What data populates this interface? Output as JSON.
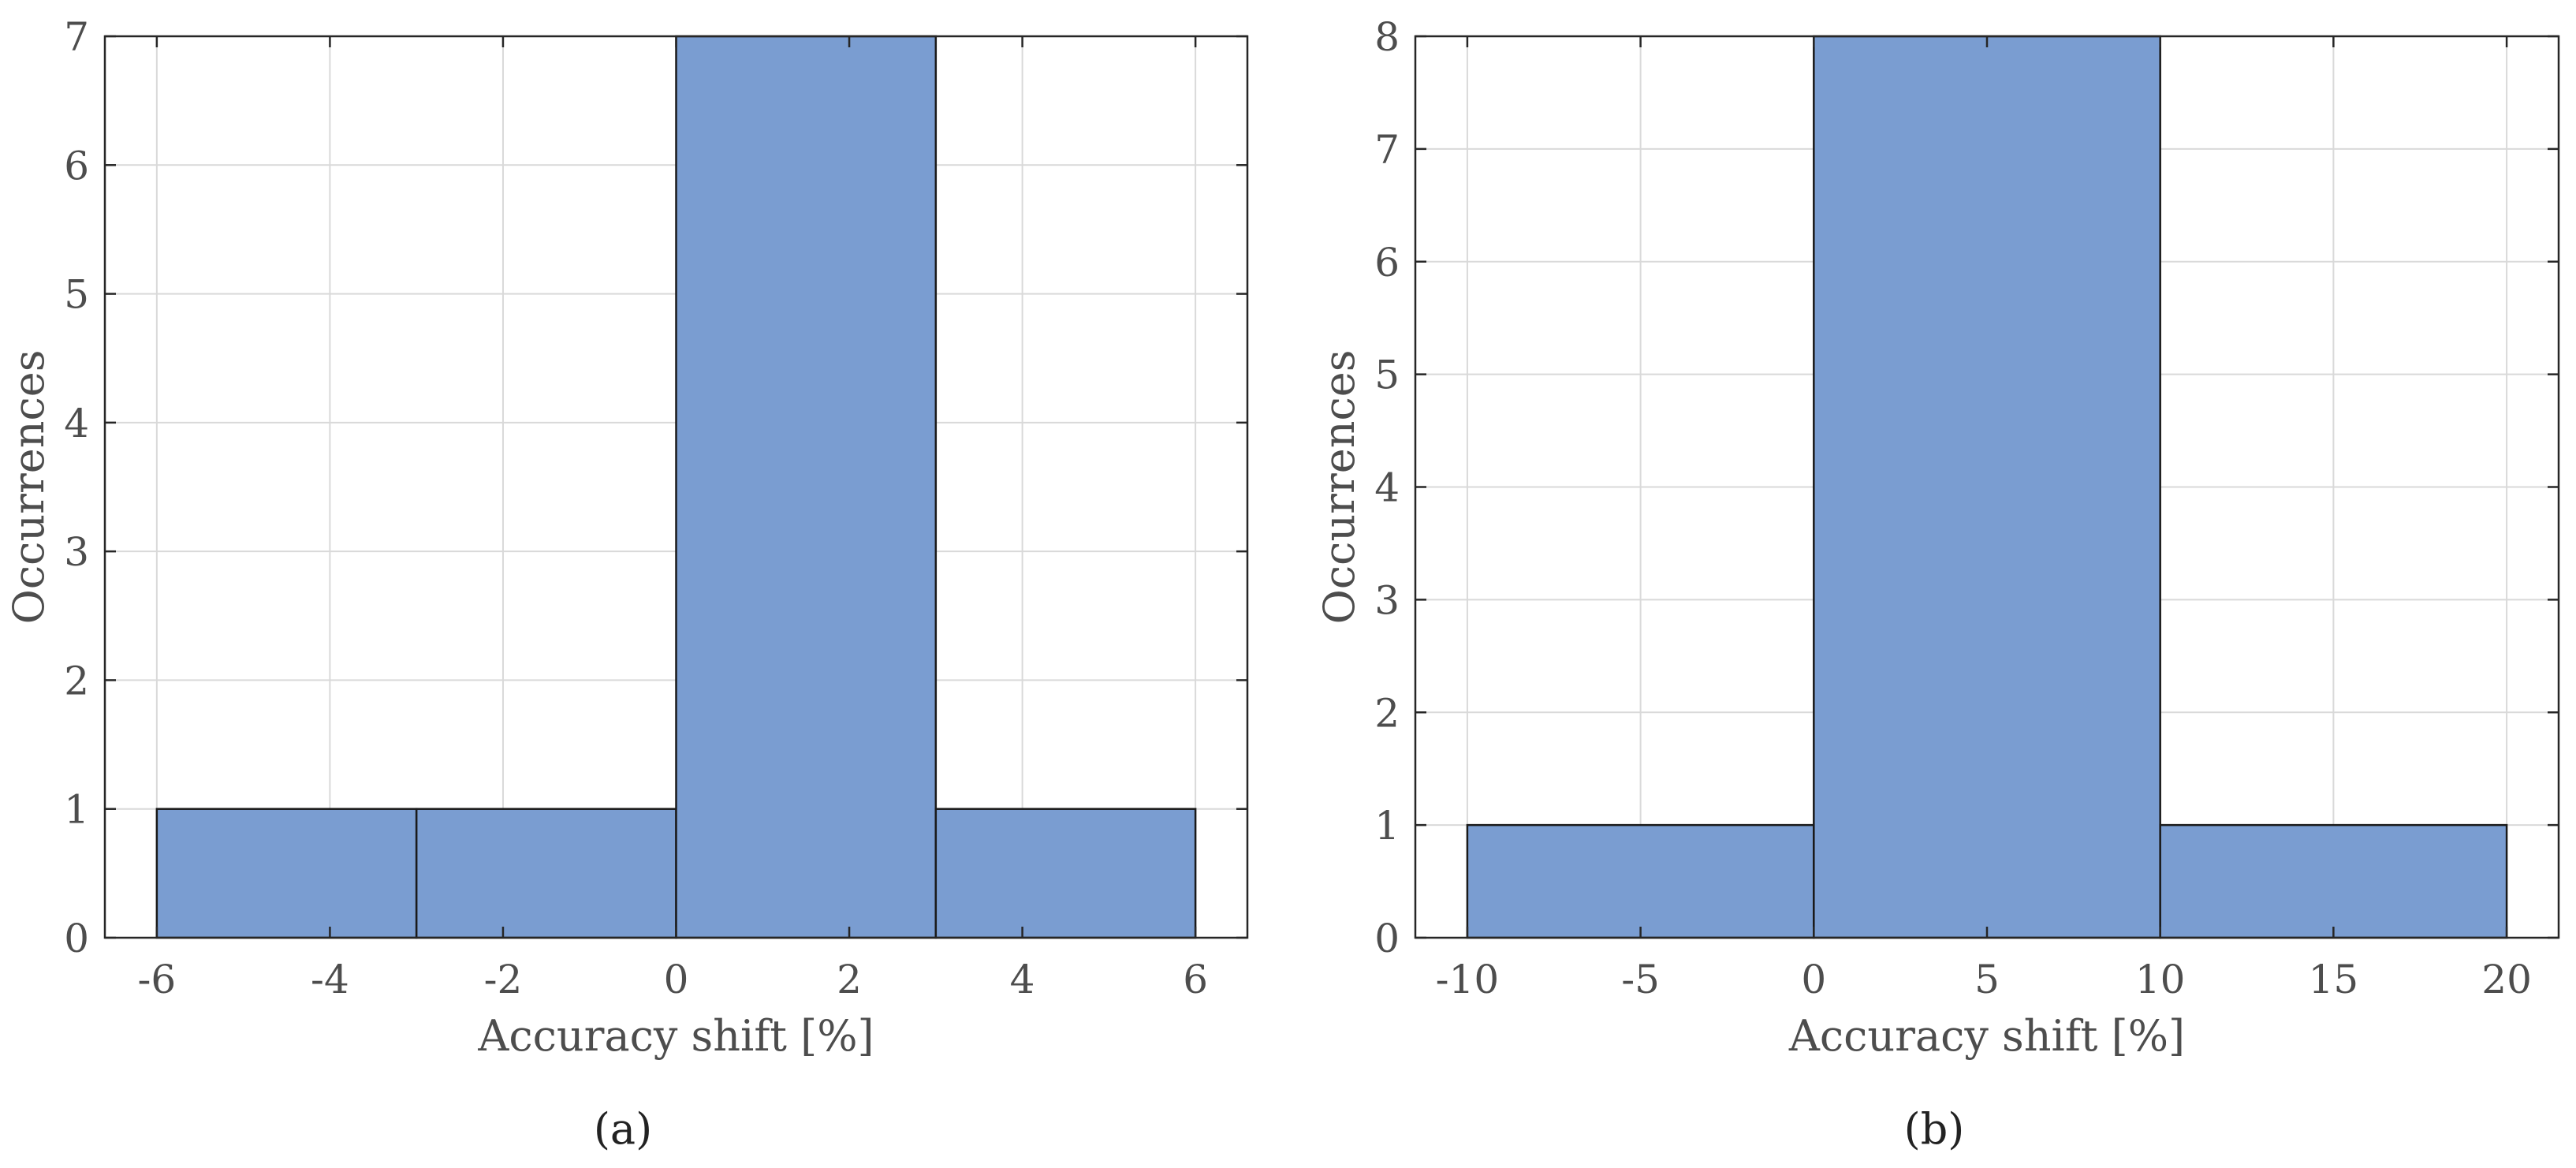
{
  "chart_data": [
    {
      "type": "bar",
      "subtype": "histogram",
      "panel_label": "(a)",
      "bin_edges": [
        -6,
        -3,
        0,
        3,
        6
      ],
      "values": [
        1,
        1,
        7,
        1
      ],
      "xlabel": "Accuracy shift [%]",
      "ylabel": "Occurrences",
      "xlim": [
        -6.6,
        6.6
      ],
      "ylim": [
        0,
        7
      ],
      "xticks": [
        -6,
        -4,
        -2,
        0,
        2,
        4,
        6
      ],
      "yticks": [
        0,
        1,
        2,
        3,
        4,
        5,
        6,
        7
      ],
      "grid": true,
      "bar_color": "#7a9dd1",
      "edge_color": "#1a1a1a"
    },
    {
      "type": "bar",
      "subtype": "histogram",
      "panel_label": "(b)",
      "bin_edges": [
        -10,
        0,
        10,
        20
      ],
      "values": [
        1,
        8,
        1
      ],
      "xlabel": "Accuracy shift [%]",
      "ylabel": "Occurrences",
      "xlim": [
        -11.5,
        21.5
      ],
      "ylim": [
        0,
        8
      ],
      "xticks": [
        -10,
        -5,
        0,
        5,
        10,
        15,
        20
      ],
      "yticks": [
        0,
        1,
        2,
        3,
        4,
        5,
        6,
        7,
        8
      ],
      "grid": true,
      "bar_color": "#7a9dd1",
      "edge_color": "#1a1a1a"
    }
  ]
}
